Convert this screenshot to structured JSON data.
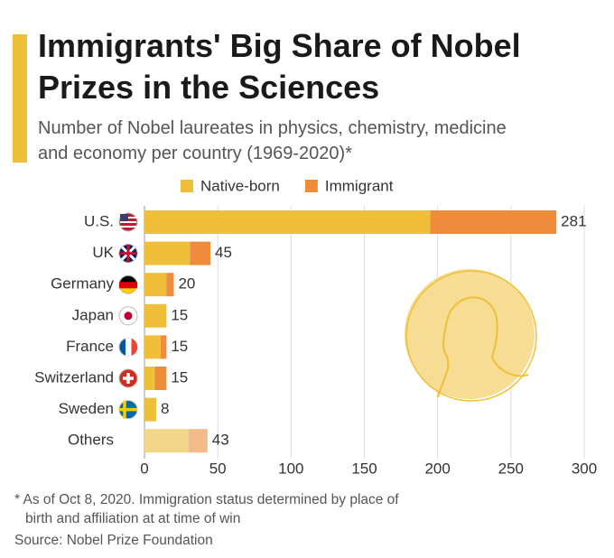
{
  "chart_data": {
    "type": "stacked-bar-horizontal",
    "title": "Immigrants' Big Share of Nobel Prizes in the Sciences",
    "subtitle": "Number of Nobel laureates in physics, chemistry, medicine and economy per country (1969-2020)*",
    "categories": [
      "U.S.",
      "UK",
      "Germany",
      "Japan",
      "France",
      "Switzerland",
      "Sweden",
      "Others"
    ],
    "series": [
      {
        "name": "Native-born",
        "color": "#efbf3a",
        "muted_color": "#f2d68a",
        "values": [
          195,
          31,
          15,
          15,
          11,
          7,
          8,
          30
        ]
      },
      {
        "name": "Immigrant",
        "color": "#ef8c3b",
        "muted_color": "#f4bb8a",
        "values": [
          86,
          14,
          5,
          0,
          4,
          8,
          0,
          13
        ]
      }
    ],
    "totals": [
      281,
      45,
      20,
      15,
      15,
      15,
      8,
      43
    ],
    "muted_index": 7,
    "xlim": [
      0,
      300
    ],
    "xticks": [
      0,
      50,
      100,
      150,
      200,
      250,
      300
    ],
    "grid": true,
    "footnote": "* As of Oct 8, 2020. Immigration status determined by place of birth and affiliation at at time of win",
    "source": "Source: Nobel Prize Foundation"
  }
}
